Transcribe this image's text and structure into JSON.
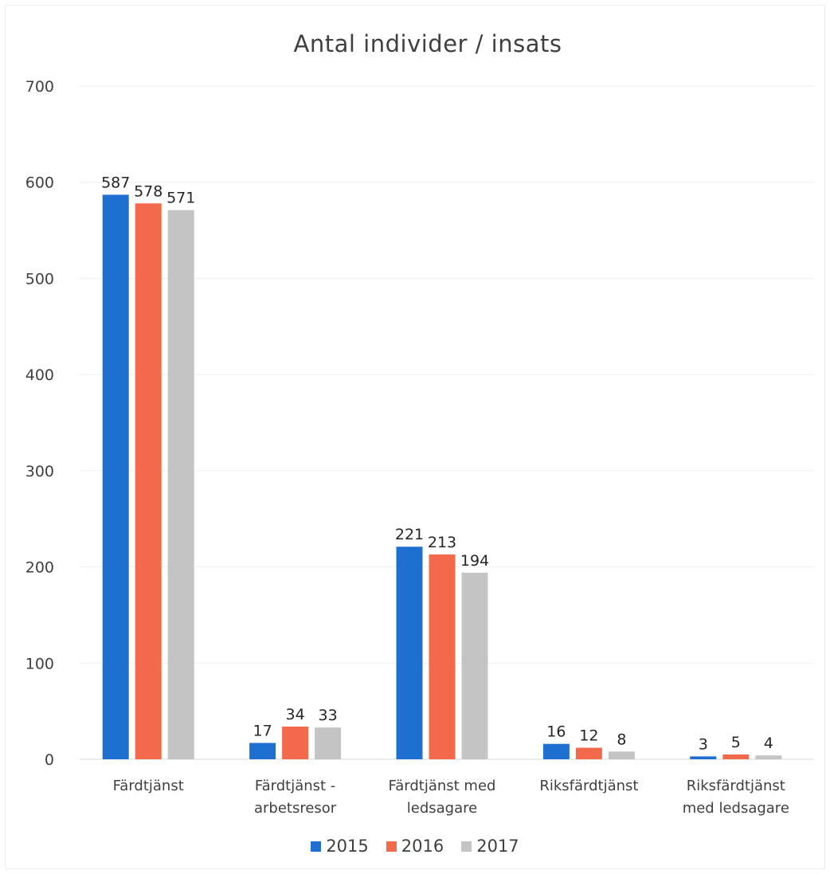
{
  "chart_data": {
    "type": "bar",
    "title": "Antal individer / insats",
    "xlabel": "",
    "ylabel": "",
    "ylim": [
      0,
      700
    ],
    "yticks": [
      0,
      100,
      200,
      300,
      400,
      500,
      600,
      700
    ],
    "grid": true,
    "legend_position": "bottom",
    "categories": [
      [
        "Färdtjänst"
      ],
      [
        "Färdtjänst -",
        "arbetsresor"
      ],
      [
        "Färdtjänst med",
        "ledsagare"
      ],
      [
        "Riksfärdtjänst"
      ],
      [
        "Riksfärdtjänst",
        "med ledsagare"
      ]
    ],
    "series": [
      {
        "name": "2015",
        "color": "#1f6fd1",
        "values": [
          587,
          17,
          221,
          16,
          3
        ]
      },
      {
        "name": "2016",
        "color": "#f26a4b",
        "values": [
          578,
          34,
          213,
          12,
          5
        ]
      },
      {
        "name": "2017",
        "color": "#c4c4c4",
        "values": [
          571,
          33,
          194,
          8,
          4
        ]
      }
    ]
  }
}
